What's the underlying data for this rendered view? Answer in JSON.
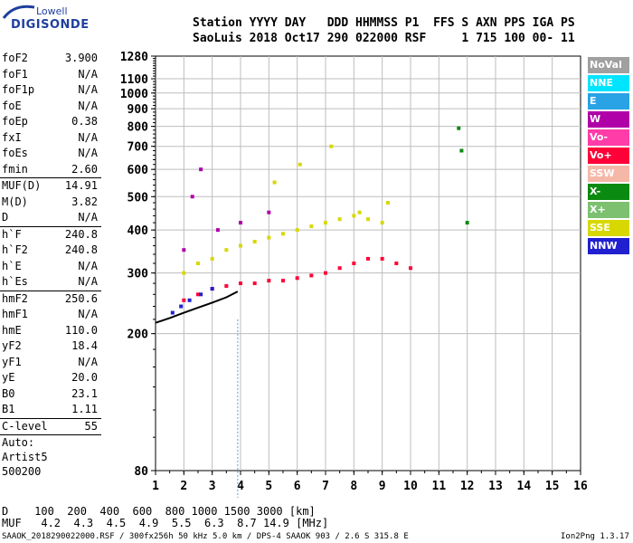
{
  "logo": {
    "line1": "Lowell",
    "line2": "DIGISONDE"
  },
  "header": {
    "labels": "Station YYYY DAY   DDD HHMMSS P1  FFS S AXN PPS IGA PS",
    "values": "SaoLuis 2018 Oct17 290 022000 RSF     1 715 100 00- 11"
  },
  "params": [
    {
      "name": "foF2",
      "value": "3.900"
    },
    {
      "name": "foF1",
      "value": "N/A"
    },
    {
      "name": "foF1p",
      "value": "N/A"
    },
    {
      "name": "foE",
      "value": "N/A"
    },
    {
      "name": "foEp",
      "value": "0.38"
    },
    {
      "name": "fxI",
      "value": "N/A"
    },
    {
      "name": "foEs",
      "value": "N/A"
    },
    {
      "name": "fmin",
      "value": "2.60"
    },
    {
      "sep": true
    },
    {
      "name": "MUF(D)",
      "value": "14.91"
    },
    {
      "name": "M(D)",
      "value": "3.82"
    },
    {
      "name": "D",
      "value": "N/A"
    },
    {
      "sep": true
    },
    {
      "name": "h`F",
      "value": "240.8"
    },
    {
      "name": "h`F2",
      "value": "240.8"
    },
    {
      "name": "h`E",
      "value": "N/A"
    },
    {
      "name": "h`Es",
      "value": "N/A"
    },
    {
      "sep": true
    },
    {
      "name": "hmF2",
      "value": "250.6"
    },
    {
      "name": "hmF1",
      "value": "N/A"
    },
    {
      "name": "hmE",
      "value": "110.0"
    },
    {
      "name": "yF2",
      "value": "18.4"
    },
    {
      "name": "yF1",
      "value": "N/A"
    },
    {
      "name": "yE",
      "value": "20.0"
    },
    {
      "name": "B0",
      "value": "23.1"
    },
    {
      "name": "B1",
      "value": "1.11"
    },
    {
      "sep": true
    },
    {
      "name": "C-level",
      "value": "55"
    },
    {
      "sep": true
    }
  ],
  "autoscaling": {
    "line1": "Auto:",
    "line2": "Artist5",
    "line3": "500200"
  },
  "legend": [
    {
      "label": "NoVal",
      "color": "#a0a0a0"
    },
    {
      "label": "NNE",
      "color": "#00e5ff"
    },
    {
      "label": "E",
      "color": "#29a3e6"
    },
    {
      "label": "W",
      "color": "#b000a8"
    },
    {
      "label": "Vo-",
      "color": "#ff3ca8"
    },
    {
      "label": "Vo+",
      "color": "#ff0038"
    },
    {
      "label": "SSW",
      "color": "#f5b8a8"
    },
    {
      "label": "X-",
      "color": "#0a8a10"
    },
    {
      "label": "X+",
      "color": "#7cc070"
    },
    {
      "label": "SSE",
      "color": "#d8d800"
    },
    {
      "label": "NNW",
      "color": "#2020d0"
    }
  ],
  "chart_data": {
    "type": "scatter",
    "title": "",
    "xlabel": "",
    "ylabel": "",
    "xlim": [
      1,
      16
    ],
    "ylim": [
      80,
      1280
    ],
    "y_scale": "log",
    "x_ticks": [
      "1",
      "2",
      "3",
      "4",
      "5",
      "6",
      "7",
      "8",
      "9",
      "10",
      "11",
      "12",
      "13",
      "14",
      "15",
      "16"
    ],
    "y_ticks": [
      "80",
      "200",
      "300",
      "400",
      "500",
      "600",
      "700",
      "800",
      "900",
      "1000",
      "1100",
      "1280"
    ],
    "grid": true,
    "series": [
      {
        "name": "SSE",
        "color": "#d8d800",
        "points": [
          [
            2.0,
            300
          ],
          [
            2.5,
            320
          ],
          [
            3.0,
            330
          ],
          [
            3.5,
            350
          ],
          [
            4.0,
            360
          ],
          [
            4.5,
            370
          ],
          [
            5.0,
            380
          ],
          [
            5.5,
            390
          ],
          [
            6.0,
            400
          ],
          [
            6.5,
            410
          ],
          [
            7.0,
            420
          ],
          [
            7.5,
            430
          ],
          [
            8.0,
            440
          ],
          [
            8.5,
            430
          ],
          [
            9.0,
            420
          ],
          [
            5.2,
            550
          ],
          [
            6.1,
            620
          ],
          [
            7.2,
            700
          ],
          [
            8.2,
            450
          ],
          [
            9.2,
            480
          ]
        ]
      },
      {
        "name": "Vo+",
        "color": "#ff0038",
        "points": [
          [
            2.0,
            250
          ],
          [
            2.5,
            260
          ],
          [
            3.0,
            270
          ],
          [
            3.5,
            275
          ],
          [
            4.0,
            280
          ],
          [
            4.5,
            280
          ],
          [
            5.0,
            285
          ],
          [
            5.5,
            285
          ],
          [
            6.0,
            290
          ],
          [
            6.5,
            295
          ],
          [
            7.0,
            300
          ],
          [
            7.5,
            310
          ],
          [
            8.0,
            320
          ],
          [
            8.5,
            330
          ],
          [
            9.0,
            330
          ],
          [
            9.5,
            320
          ],
          [
            10.0,
            310
          ]
        ]
      },
      {
        "name": "W",
        "color": "#b000a8",
        "points": [
          [
            2.0,
            350
          ],
          [
            2.3,
            500
          ],
          [
            2.6,
            600
          ],
          [
            3.2,
            400
          ],
          [
            4.0,
            420
          ],
          [
            5.0,
            450
          ]
        ]
      },
      {
        "name": "NNW",
        "color": "#2020d0",
        "points": [
          [
            1.6,
            230
          ],
          [
            1.9,
            240
          ],
          [
            2.2,
            250
          ],
          [
            2.6,
            260
          ],
          [
            3.0,
            270
          ]
        ]
      },
      {
        "name": "X-",
        "color": "#0a8a10",
        "points": [
          [
            11.7,
            790
          ],
          [
            11.8,
            680
          ],
          [
            12.0,
            420
          ]
        ]
      }
    ],
    "trace": {
      "color": "#000000",
      "points": [
        [
          1.0,
          215
        ],
        [
          1.5,
          222
        ],
        [
          2.0,
          230
        ],
        [
          2.5,
          238
        ],
        [
          3.0,
          246
        ],
        [
          3.5,
          255
        ],
        [
          3.9,
          265
        ]
      ]
    },
    "f_max_line": {
      "color": "#000000",
      "x": 3.9
    }
  },
  "muf_table": {
    "row1": "D    100  200  400  600  800 1000 1500 3000 [km]",
    "row2": "MUF   4.2  4.3  4.5  4.9  5.5  6.3  8.7 14.9 [MHz]"
  },
  "footer": "SAAOK_2018290022000.RSF / 300fx256h 50 kHz 5.0 km / DPS-4 SAAOK 903 / 2.6 S 315.8 E",
  "version": "Ion2Png 1.3.17"
}
